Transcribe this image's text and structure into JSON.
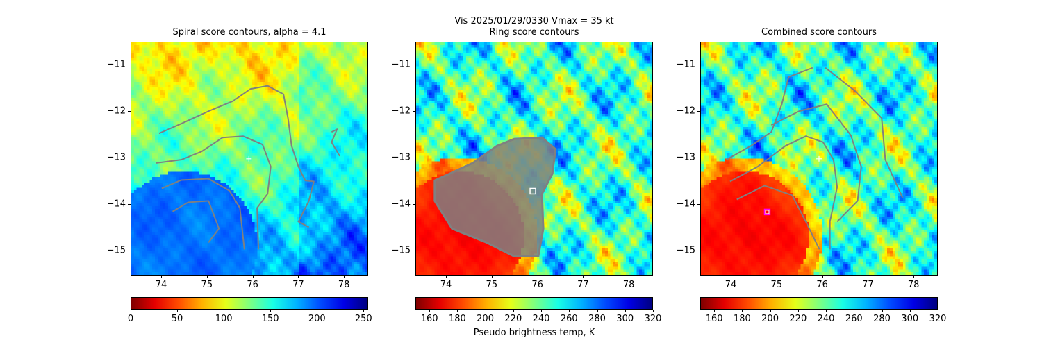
{
  "suptitle": "Vis  2025/01/29/0330    Vmax = 35 kt",
  "chart_data": [
    {
      "type": "heatmap",
      "title": "Spiral score contours, alpha =  4.1",
      "xlim": [
        73.33,
        78.53
      ],
      "ylim": [
        -15.54,
        -10.51
      ],
      "xticks": [
        "74",
        "75",
        "76",
        "77",
        "78"
      ],
      "xtick_values": [
        74,
        75,
        76,
        77,
        78
      ],
      "yticks": [
        "−11",
        "−12",
        "−13",
        "−14",
        "−15"
      ],
      "ytick_values": [
        -11,
        -12,
        -13,
        -14,
        -15
      ],
      "colormap": "jet_r",
      "colorbar": {
        "range": [
          0,
          255
        ],
        "ticks": [
          "0",
          "50",
          "100",
          "150",
          "200",
          "250"
        ],
        "tick_values": [
          0,
          50,
          100,
          150,
          200,
          250
        ],
        "label": ""
      },
      "field": "spiral",
      "contour_color": "#808080",
      "contours": [
        [
          [
            73.94,
            -12.48
          ],
          [
            74.43,
            -12.27
          ],
          [
            75.03,
            -12.0
          ],
          [
            75.57,
            -11.78
          ],
          [
            75.95,
            -11.52
          ],
          [
            76.33,
            -11.45
          ],
          [
            76.68,
            -11.63
          ],
          [
            76.78,
            -12.15
          ],
          [
            76.86,
            -12.75
          ],
          [
            77.01,
            -13.2
          ],
          [
            77.16,
            -13.5
          ],
          [
            77.35,
            -13.52
          ],
          [
            77.24,
            -13.94
          ],
          [
            77.01,
            -14.39
          ],
          [
            77.24,
            -14.51
          ]
        ],
        [
          [
            73.88,
            -13.12
          ],
          [
            74.43,
            -13.05
          ],
          [
            74.88,
            -12.87
          ],
          [
            75.34,
            -12.57
          ],
          [
            75.79,
            -12.54
          ],
          [
            76.22,
            -12.72
          ],
          [
            76.4,
            -13.2
          ],
          [
            76.33,
            -13.79
          ],
          [
            76.1,
            -14.09
          ],
          [
            76.13,
            -14.99
          ]
        ],
        [
          [
            74.0,
            -13.67
          ],
          [
            74.43,
            -13.49
          ],
          [
            75.03,
            -13.46
          ],
          [
            75.49,
            -13.72
          ],
          [
            75.72,
            -14.09
          ],
          [
            75.82,
            -14.99
          ]
        ],
        [
          [
            74.24,
            -14.17
          ],
          [
            74.58,
            -13.97
          ],
          [
            75.03,
            -13.94
          ],
          [
            75.26,
            -14.54
          ],
          [
            75.03,
            -14.84
          ]
        ],
        [
          [
            77.74,
            -12.45
          ],
          [
            77.86,
            -12.39
          ],
          [
            77.74,
            -12.67
          ],
          [
            77.92,
            -12.97
          ]
        ]
      ],
      "markers": [
        {
          "type": "plus",
          "x": 75.92,
          "y": -13.03,
          "color": "#ffffff"
        }
      ]
    },
    {
      "type": "heatmap",
      "title": "Ring score contours",
      "xlim": [
        73.33,
        78.53
      ],
      "ylim": [
        -15.54,
        -10.51
      ],
      "xticks": [
        "74",
        "75",
        "76",
        "77",
        "78"
      ],
      "xtick_values": [
        74,
        75,
        76,
        77,
        78
      ],
      "yticks": [
        "−11",
        "−12",
        "−13",
        "−14",
        "−15"
      ],
      "ytick_values": [
        -11,
        -12,
        -13,
        -14,
        -15
      ],
      "colormap": "jet_r",
      "colorbar": {
        "range": [
          150,
          320
        ],
        "ticks": [
          "160",
          "180",
          "200",
          "220",
          "240",
          "260",
          "280",
          "300",
          "320"
        ],
        "tick_values": [
          160,
          180,
          200,
          220,
          240,
          260,
          280,
          300,
          320
        ],
        "label": "Pseudo brightness temp, K"
      },
      "field": "bt",
      "ring_region_color": "#808080",
      "ring_region": [
        [
          73.74,
          -13.5
        ],
        [
          74.58,
          -13.12
        ],
        [
          75.11,
          -12.75
        ],
        [
          75.49,
          -12.6
        ],
        [
          76.1,
          -12.57
        ],
        [
          76.4,
          -12.82
        ],
        [
          76.33,
          -13.35
        ],
        [
          76.1,
          -13.79
        ],
        [
          76.13,
          -14.54
        ],
        [
          76.02,
          -15.14
        ],
        [
          75.49,
          -15.14
        ],
        [
          74.88,
          -14.84
        ],
        [
          74.12,
          -14.54
        ],
        [
          73.74,
          -13.94
        ]
      ],
      "markers": [
        {
          "type": "square",
          "x": 75.9,
          "y": -13.73,
          "color": "#ffffff"
        }
      ]
    },
    {
      "type": "heatmap",
      "title": "Combined score contours",
      "xlim": [
        73.33,
        78.53
      ],
      "ylim": [
        -15.54,
        -10.51
      ],
      "xticks": [
        "74",
        "75",
        "76",
        "77",
        "78"
      ],
      "xtick_values": [
        74,
        75,
        76,
        77,
        78
      ],
      "yticks": [
        "−11",
        "−12",
        "−13",
        "−14",
        "−15"
      ],
      "ytick_values": [
        -11,
        -12,
        -13,
        -14,
        -15
      ],
      "colormap": "jet_r",
      "colorbar": {
        "range": [
          150,
          320
        ],
        "ticks": [
          "160",
          "180",
          "200",
          "220",
          "240",
          "260",
          "280",
          "300",
          "320"
        ],
        "tick_values": [
          160,
          180,
          200,
          220,
          240,
          260,
          280,
          300,
          320
        ],
        "label": ""
      },
      "field": "bt",
      "contour_color": "#808080",
      "contours": [
        [
          [
            73.89,
            -13.05
          ],
          [
            74.43,
            -12.75
          ],
          [
            74.88,
            -12.45
          ],
          [
            75.11,
            -11.85
          ],
          [
            75.26,
            -11.26
          ],
          [
            75.79,
            -11.06
          ]
        ],
        [
          [
            73.97,
            -13.52
          ],
          [
            74.58,
            -13.2
          ],
          [
            75.19,
            -12.75
          ],
          [
            75.64,
            -12.54
          ],
          [
            76.02,
            -12.67
          ],
          [
            76.25,
            -13.05
          ],
          [
            76.33,
            -13.64
          ],
          [
            76.17,
            -14.39
          ],
          [
            76.17,
            -14.99
          ]
        ],
        [
          [
            74.12,
            -13.91
          ],
          [
            74.73,
            -13.61
          ],
          [
            75.34,
            -13.82
          ],
          [
            75.64,
            -14.39
          ],
          [
            75.94,
            -14.99
          ]
        ],
        [
          [
            76.07,
            -11.06
          ],
          [
            76.71,
            -11.55
          ],
          [
            77.31,
            -12.15
          ],
          [
            77.39,
            -13.05
          ],
          [
            77.77,
            -13.87
          ]
        ],
        [
          [
            76.33,
            -14.39
          ],
          [
            76.78,
            -13.94
          ],
          [
            76.86,
            -13.2
          ],
          [
            76.63,
            -12.52
          ],
          [
            76.1,
            -11.85
          ],
          [
            75.49,
            -12.0
          ],
          [
            74.88,
            -12.3
          ]
        ]
      ],
      "markers": [
        {
          "type": "plus",
          "x": 75.93,
          "y": -13.03,
          "color": "#ffffff"
        },
        {
          "type": "square",
          "x": 74.79,
          "y": -14.18,
          "color": "#ff00ff"
        }
      ]
    }
  ]
}
